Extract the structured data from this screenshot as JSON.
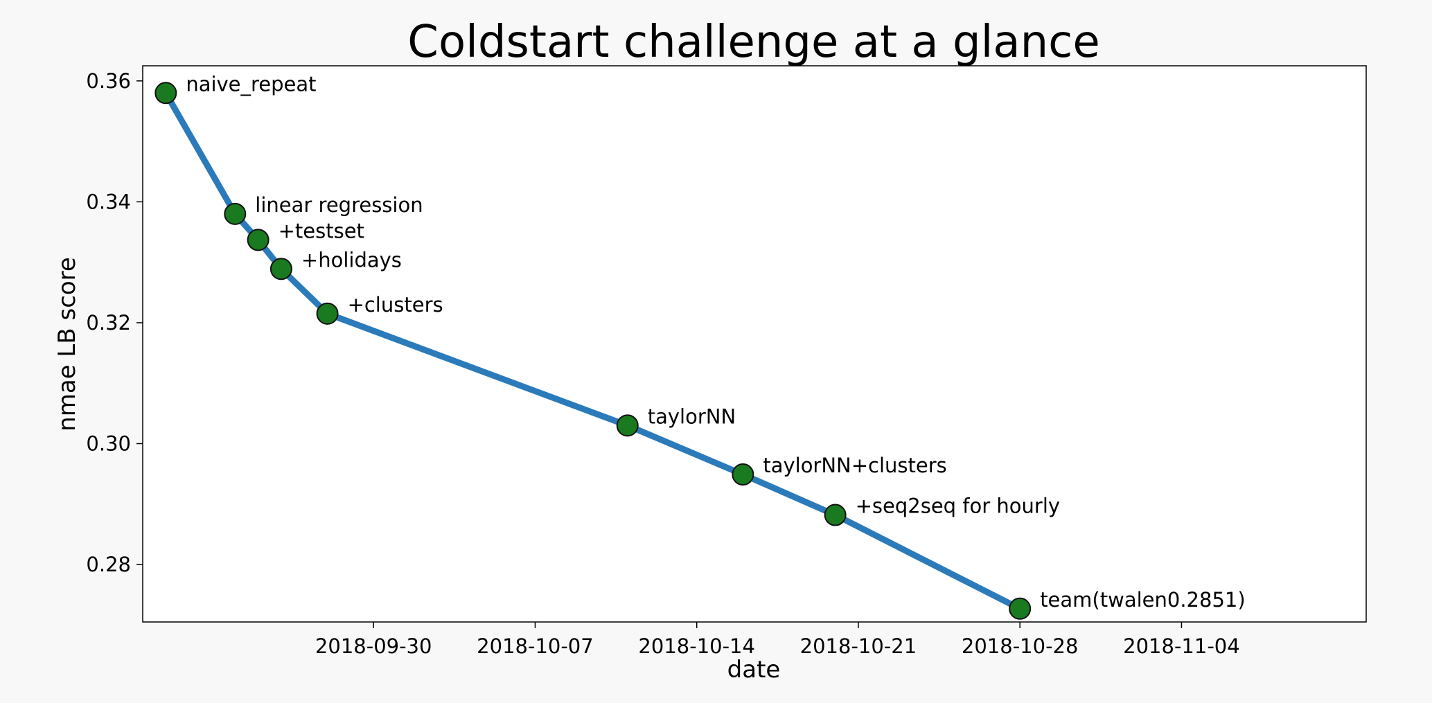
{
  "chart_data": {
    "type": "line",
    "title": "Coldstart challenge at a glance",
    "xlabel": "date",
    "ylabel": "nmae LB score",
    "x_type": "date",
    "xlim": [
      "2018-09-20",
      "2018-11-12"
    ],
    "ylim": [
      0.2705,
      0.3625
    ],
    "xticks": [
      "2018-09-30",
      "2018-10-07",
      "2018-10-14",
      "2018-10-21",
      "2018-10-28",
      "2018-11-04"
    ],
    "yticks": [
      0.28,
      0.3,
      0.32,
      0.34,
      0.36
    ],
    "ytick_labels": [
      "0.28",
      "0.30",
      "0.32",
      "0.34",
      "0.36"
    ],
    "grid": false,
    "series": [
      {
        "line_color": "#2b7bba",
        "marker_color": "#1a7a1f",
        "points": [
          {
            "x": "2018-09-21",
            "y": 0.358,
            "label": "naive_repeat"
          },
          {
            "x": "2018-09-24",
            "y": 0.338,
            "label": "linear regression"
          },
          {
            "x": "2018-09-25",
            "y": 0.3337,
            "label": "+testset"
          },
          {
            "x": "2018-09-26",
            "y": 0.3289,
            "label": "+holidays"
          },
          {
            "x": "2018-09-28",
            "y": 0.3215,
            "label": "+clusters"
          },
          {
            "x": "2018-10-11",
            "y": 0.303,
            "label": "taylorNN"
          },
          {
            "x": "2018-10-16",
            "y": 0.2949,
            "label": "taylorNN+clusters"
          },
          {
            "x": "2018-10-20",
            "y": 0.2882,
            "label": "+seq2seq for hourly"
          },
          {
            "x": "2018-10-28",
            "y": 0.2727,
            "label": "team(twalen0.2851)"
          }
        ]
      }
    ]
  }
}
